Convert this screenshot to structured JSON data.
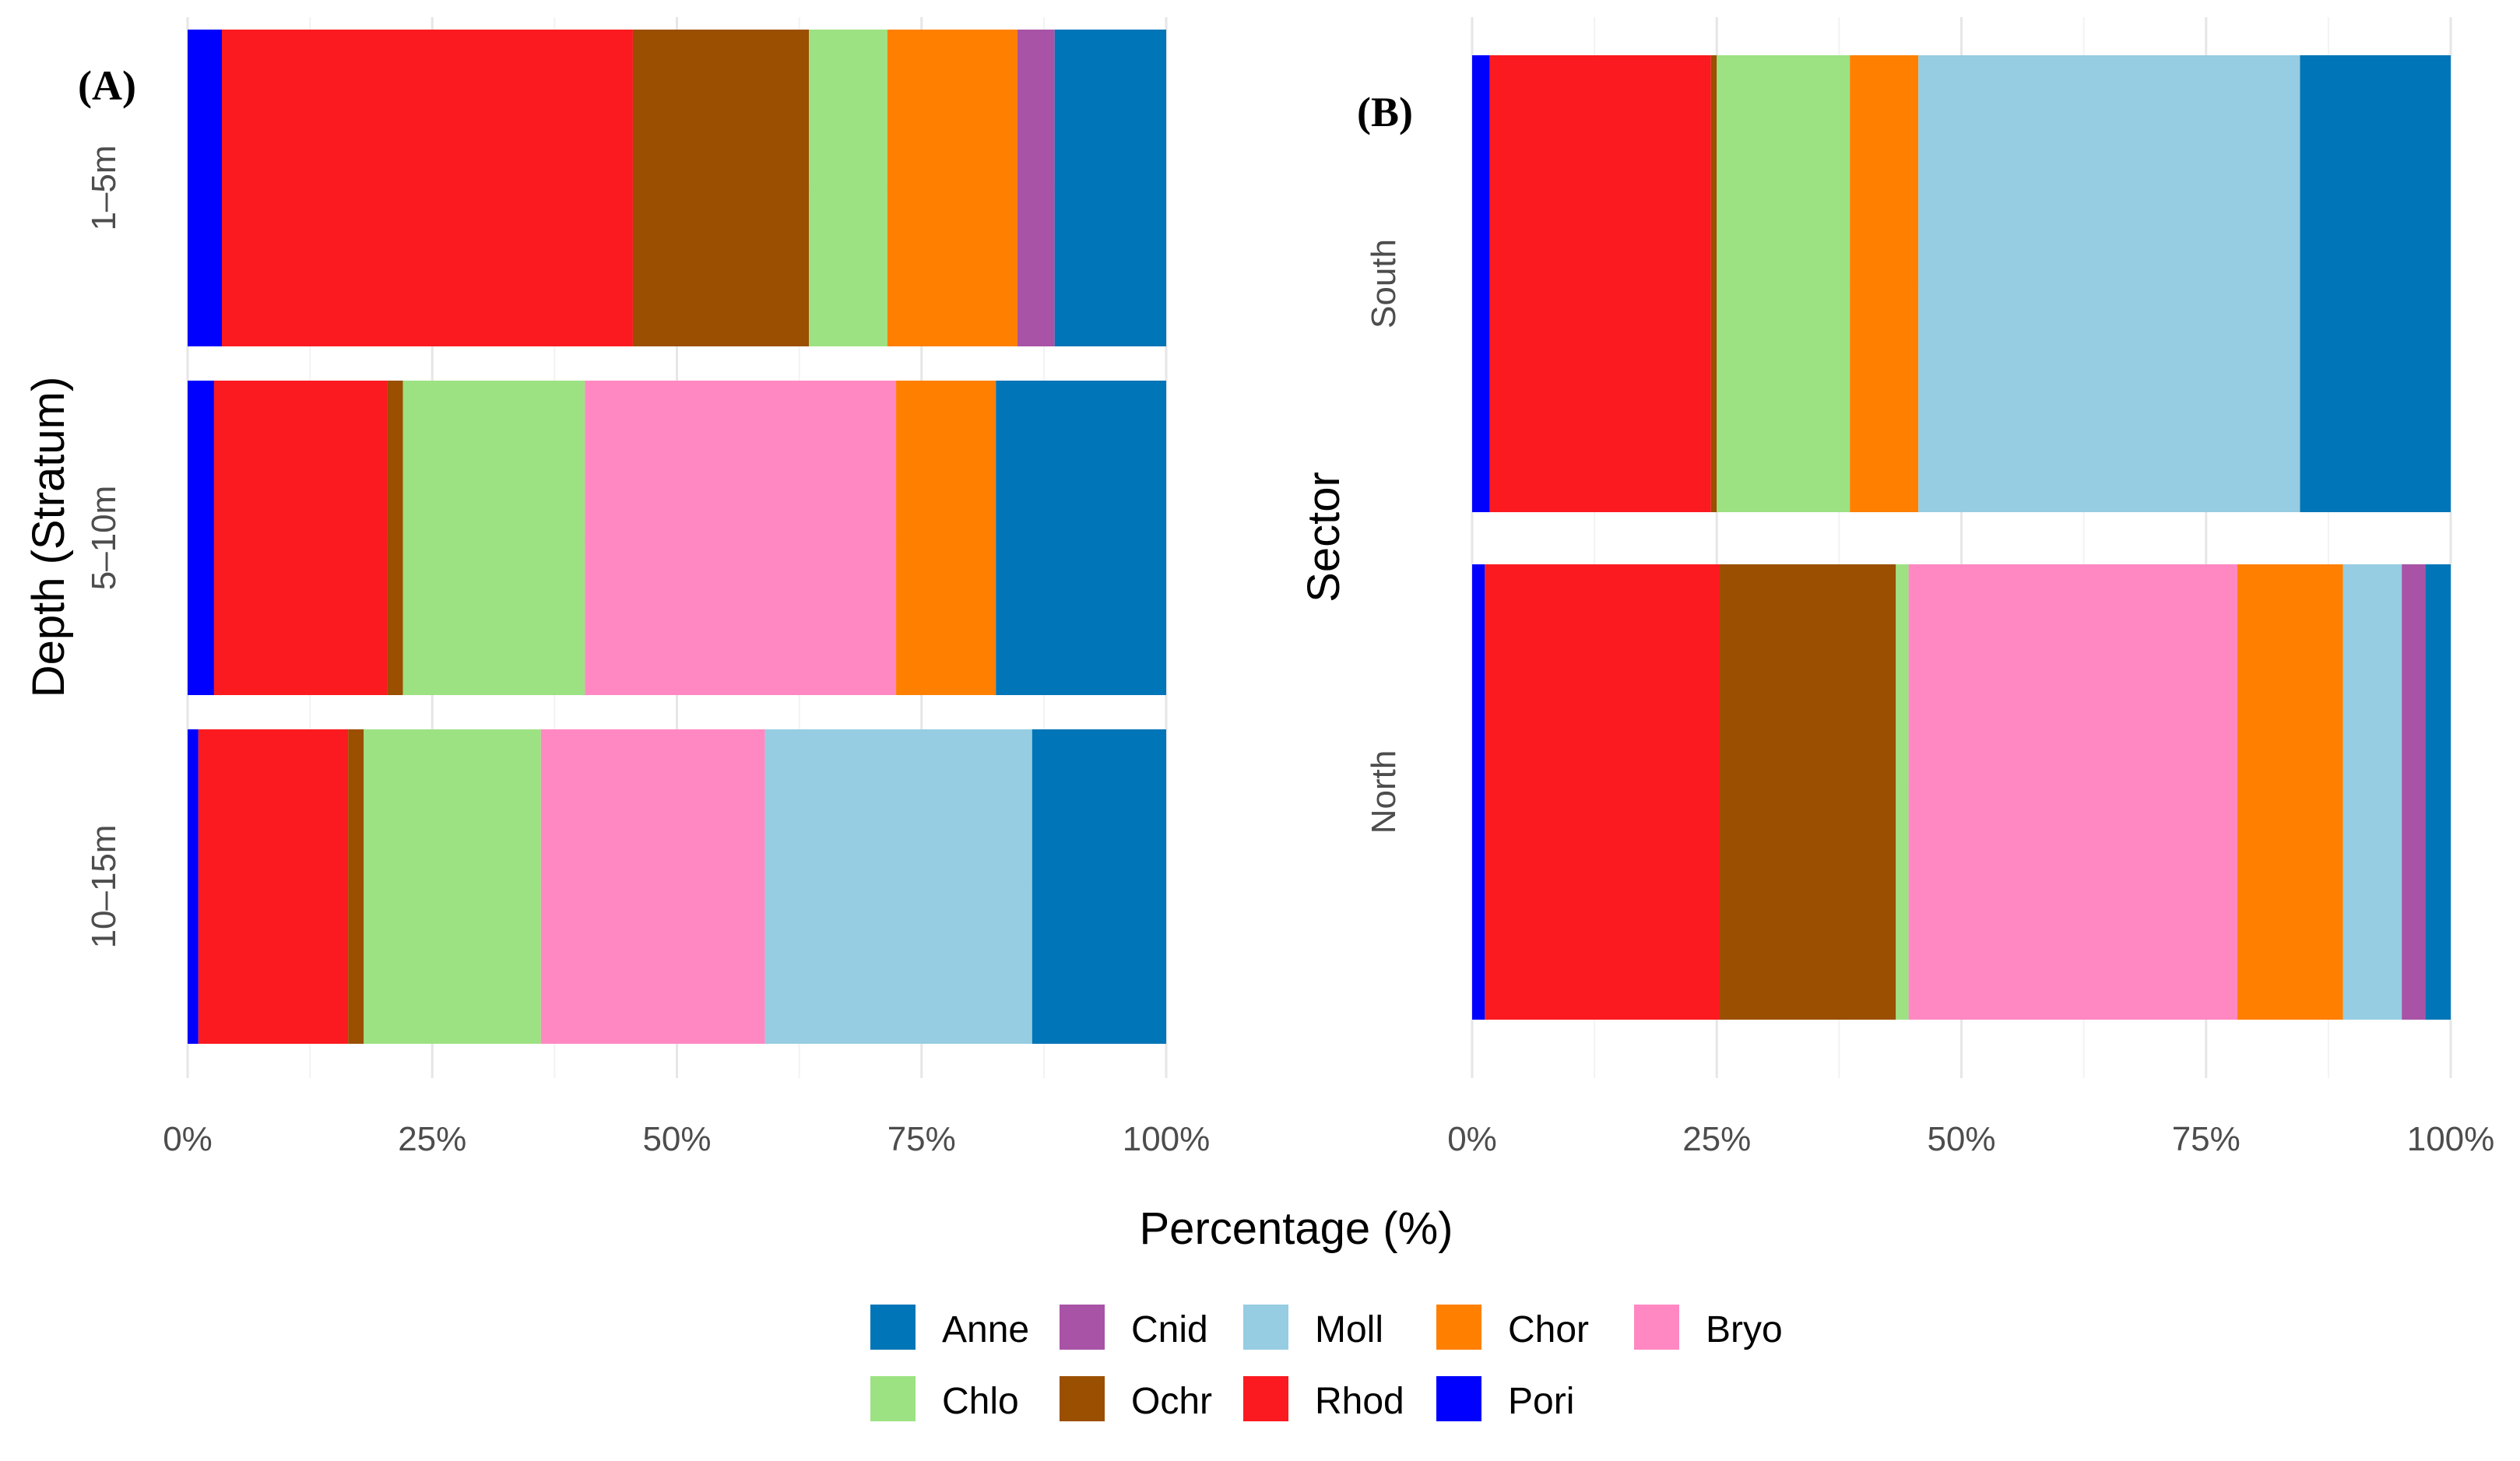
{
  "chart_data": [
    {
      "type": "bar",
      "orientation": "horizontal",
      "stacked": true,
      "panel_tag": "(A)",
      "xlabel": "Percentage (%)",
      "ylabel": "Depth (Stratum)",
      "xlim": [
        0,
        100
      ],
      "xticks": [
        "0%",
        "25%",
        "50%",
        "75%",
        "100%"
      ],
      "categories": [
        "1–5m",
        "5–10m",
        "10–15m"
      ],
      "segments": [
        {
          "category": "1–5m",
          "values": [
            {
              "group": "Pori",
              "value": 3.5
            },
            {
              "group": "Rhod",
              "value": 42
            },
            {
              "group": "Ochr",
              "value": 18
            },
            {
              "group": "Chlo",
              "value": 8
            },
            {
              "group": "Chor",
              "value": 13.3
            },
            {
              "group": "Cnid",
              "value": 3.8
            },
            {
              "group": "Anne",
              "value": 11.4
            }
          ]
        },
        {
          "category": "5–10m",
          "values": [
            {
              "group": "Pori",
              "value": 2.7
            },
            {
              "group": "Rhod",
              "value": 17.7
            },
            {
              "group": "Ochr",
              "value": 1.6
            },
            {
              "group": "Chlo",
              "value": 18.6
            },
            {
              "group": "Bryo",
              "value": 31.8
            },
            {
              "group": "Chor",
              "value": 10.2
            },
            {
              "group": "Anne",
              "value": 17.4
            }
          ]
        },
        {
          "category": "10–15m",
          "values": [
            {
              "group": "Pori",
              "value": 1.1
            },
            {
              "group": "Rhod",
              "value": 15.3
            },
            {
              "group": "Ochr",
              "value": 1.6
            },
            {
              "group": "Chlo",
              "value": 18.1
            },
            {
              "group": "Bryo",
              "value": 22.9
            },
            {
              "group": "Moll",
              "value": 27.3
            },
            {
              "group": "Anne",
              "value": 13.7
            }
          ]
        }
      ]
    },
    {
      "type": "bar",
      "orientation": "horizontal",
      "stacked": true,
      "panel_tag": "(B)",
      "xlabel": "Percentage (%)",
      "ylabel": "Sector",
      "xlim": [
        0,
        100
      ],
      "xticks": [
        "0%",
        "25%",
        "50%",
        "75%",
        "100%"
      ],
      "categories": [
        "South",
        "North"
      ],
      "segments": [
        {
          "category": "South",
          "values": [
            {
              "group": "Pori",
              "value": 1.8
            },
            {
              "group": "Rhod",
              "value": 22.6
            },
            {
              "group": "Ochr",
              "value": 0.6
            },
            {
              "group": "Chlo",
              "value": 13.6
            },
            {
              "group": "Chor",
              "value": 7
            },
            {
              "group": "Moll",
              "value": 39
            },
            {
              "group": "Anne",
              "value": 15.4
            }
          ]
        },
        {
          "category": "North",
          "values": [
            {
              "group": "Pori",
              "value": 1.3
            },
            {
              "group": "Rhod",
              "value": 24
            },
            {
              "group": "Ochr",
              "value": 18
            },
            {
              "group": "Chlo",
              "value": 1.3
            },
            {
              "group": "Bryo",
              "value": 33.6
            },
            {
              "group": "Chor",
              "value": 10.8
            },
            {
              "group": "Moll",
              "value": 6
            },
            {
              "group": "Cnid",
              "value": 2.4
            },
            {
              "group": "Anne",
              "value": 2.6
            }
          ]
        }
      ]
    }
  ],
  "shared_xlabel": "Percentage (%)",
  "legend": {
    "position": "bottom",
    "items": [
      {
        "label": "Anne",
        "color": "#0075b7"
      },
      {
        "label": "Cnid",
        "color": "#a853a6"
      },
      {
        "label": "Moll",
        "color": "#96cde2"
      },
      {
        "label": "Chor",
        "color": "#ff7f00"
      },
      {
        "label": "Bryo",
        "color": "#ff88c2"
      },
      {
        "label": "Chlo",
        "color": "#9ce283"
      },
      {
        "label": "Ochr",
        "color": "#9b4f00"
      },
      {
        "label": "Rhod",
        "color": "#fb1a1f"
      },
      {
        "label": "Pori",
        "color": "#0000ff"
      }
    ]
  },
  "colors": {
    "Anne": "#0075b7",
    "Cnid": "#a853a6",
    "Moll": "#96cde2",
    "Chor": "#ff7f00",
    "Bryo": "#ff88c2",
    "Chlo": "#9ce283",
    "Ochr": "#9b4f00",
    "Rhod": "#fb1a1f",
    "Pori": "#0000ff"
  }
}
